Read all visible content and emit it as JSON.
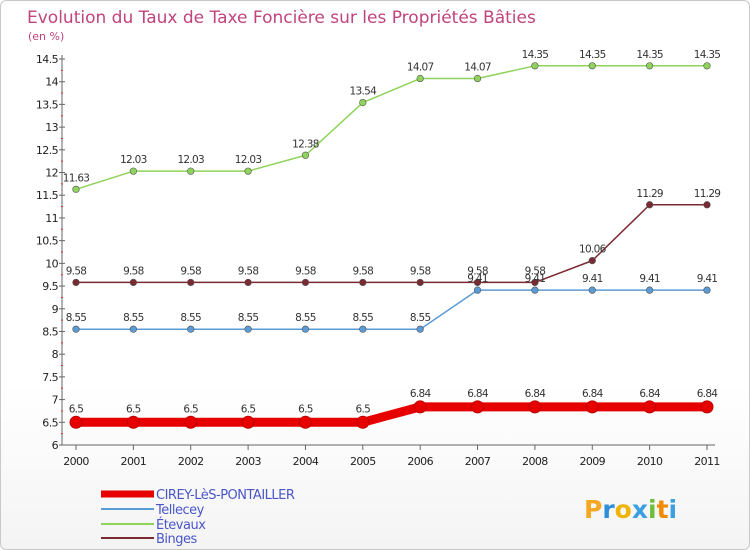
{
  "chart_data": {
    "type": "line",
    "title": "Evolution du Taux de Taxe Foncière sur les Propriétés Bâties",
    "unit_label": "(en %)",
    "x": [
      "2000",
      "2001",
      "2002",
      "2003",
      "2004",
      "2005",
      "2006",
      "2007",
      "2008",
      "2009",
      "2010",
      "2011"
    ],
    "ylim": [
      6,
      14.5
    ],
    "yticks": [
      "6",
      "6.5",
      "7",
      "7.5",
      "8",
      "8.5",
      "9",
      "9.5",
      "10",
      "10.5",
      "11",
      "11.5",
      "12",
      "12.5",
      "13",
      "13.5",
      "14",
      "14.5"
    ],
    "grid": false,
    "legend_position": "bottom-left",
    "series": [
      {
        "name": "CIREY-LèS-PONTAILLER",
        "color": "#e60000",
        "width": 9,
        "values": [
          6.5,
          6.5,
          6.5,
          6.5,
          6.5,
          6.5,
          6.84,
          6.84,
          6.84,
          6.84,
          6.84,
          6.84
        ],
        "labels": [
          "6.5",
          "6.5",
          "6.5",
          "6.5",
          "6.5",
          "6.5",
          "6.84",
          "6.84",
          "6.84",
          "6.84",
          "6.84",
          "6.84"
        ]
      },
      {
        "name": "Tellecey",
        "color": "#5b9bd5",
        "width": 1.5,
        "values": [
          8.55,
          8.55,
          8.55,
          8.55,
          8.55,
          8.55,
          8.55,
          9.41,
          9.41,
          9.41,
          9.41,
          9.41
        ],
        "labels": [
          "8.55",
          "8.55",
          "8.55",
          "8.55",
          "8.55",
          "8.55",
          "8.55",
          "9.41",
          "9.41",
          "9.41",
          "9.41",
          "9.41"
        ]
      },
      {
        "name": "Étevaux",
        "color": "#8fd35a",
        "width": 1.5,
        "values": [
          11.63,
          12.03,
          12.03,
          12.03,
          12.38,
          13.54,
          14.07,
          14.07,
          14.35,
          14.35,
          14.35,
          14.35
        ],
        "labels": [
          "11.63",
          "12.03",
          "12.03",
          "12.03",
          "12.38",
          "13.54",
          "14.07",
          "14.07",
          "14.35",
          "14.35",
          "14.35",
          "14.35"
        ]
      },
      {
        "name": "Binges",
        "color": "#7a2a32",
        "width": 1.5,
        "values": [
          9.58,
          9.58,
          9.58,
          9.58,
          9.58,
          9.58,
          9.58,
          9.58,
          9.58,
          10.06,
          11.29,
          11.29
        ],
        "labels": [
          "9.58",
          "9.58",
          "9.58",
          "9.58",
          "9.58",
          "9.58",
          "9.58",
          "9.58",
          "9.58",
          "10.06",
          "11.29",
          "11.29"
        ]
      }
    ]
  },
  "watermark": {
    "text": "Proxiti",
    "letters": [
      "P",
      "r",
      "o",
      "x",
      "i",
      "t",
      "i"
    ],
    "colors": [
      "#f5a623",
      "#2f8fd6",
      "#f0b400",
      "#3aa0e0",
      "#6cbf3a",
      "#f08a00",
      "#3aa0e0"
    ]
  }
}
